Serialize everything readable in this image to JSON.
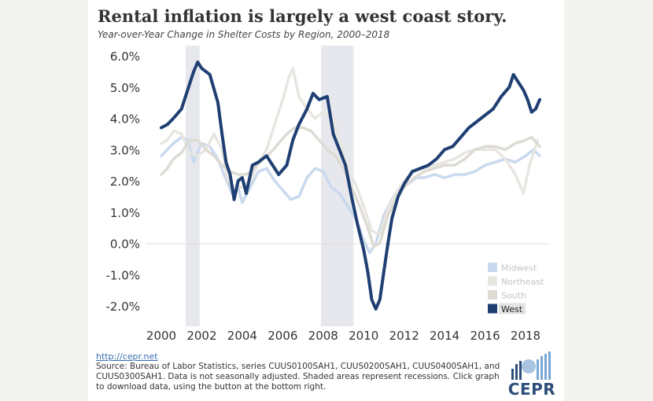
{
  "header": {
    "title": "Rental inflation is largely a west coast story.",
    "subtitle": "Year-over-Year Change in Shelter Costs by Region, 2000–2018"
  },
  "footer": {
    "link": "http://cepr.net",
    "source": "Source: Bureau of Labor Statistics, series CUUS0100SAH1, CUUS0200SAH1, CUUS0400SAH1, and CUUS0300SAH1. Data is not seasonally adjusted. Shaded areas represent recessions. Click graph to download data, using the button at the bottom right.",
    "logo": "CEPR"
  },
  "chart_data": {
    "type": "line",
    "xlim": [
      2000,
      2019.0
    ],
    "ylim": [
      -2.5,
      6.2
    ],
    "x_ticks": [
      2000,
      2002,
      2004,
      2006,
      2008,
      2010,
      2012,
      2014,
      2016,
      2018
    ],
    "y_ticks": [
      -2.0,
      -1.0,
      0.0,
      1.0,
      2.0,
      3.0,
      4.0,
      5.0,
      6.0
    ],
    "y_tick_labels": [
      "-2.0%",
      "-1.0%",
      "0.0%",
      "1.0%",
      "2.0%",
      "3.0%",
      "4.0%",
      "5.0%",
      "6.0%"
    ],
    "recessions": [
      [
        2001.2,
        2001.9
      ],
      [
        2007.9,
        2009.5
      ]
    ],
    "grid": false,
    "legend_position": "bottom-right",
    "series": [
      {
        "name": "Midwest",
        "color": "#c9d9ee",
        "points": [
          [
            2000.0,
            2.8
          ],
          [
            2000.3,
            3.0
          ],
          [
            2000.6,
            3.2
          ],
          [
            2001.0,
            3.4
          ],
          [
            2001.3,
            3.3
          ],
          [
            2001.6,
            2.6
          ],
          [
            2002.0,
            3.2
          ],
          [
            2002.4,
            3.1
          ],
          [
            2002.8,
            2.7
          ],
          [
            2003.1,
            2.2
          ],
          [
            2003.5,
            1.6
          ],
          [
            2003.8,
            1.8
          ],
          [
            2004.0,
            1.3
          ],
          [
            2004.4,
            1.8
          ],
          [
            2004.8,
            2.3
          ],
          [
            2005.2,
            2.4
          ],
          [
            2005.6,
            2.0
          ],
          [
            2006.0,
            1.7
          ],
          [
            2006.4,
            1.4
          ],
          [
            2006.8,
            1.5
          ],
          [
            2007.2,
            2.1
          ],
          [
            2007.6,
            2.4
          ],
          [
            2008.0,
            2.3
          ],
          [
            2008.4,
            1.8
          ],
          [
            2008.8,
            1.6
          ],
          [
            2009.2,
            1.2
          ],
          [
            2009.6,
            0.8
          ],
          [
            2010.0,
            0.1
          ],
          [
            2010.3,
            -0.3
          ],
          [
            2010.6,
            0.0
          ],
          [
            2011.0,
            0.9
          ],
          [
            2011.4,
            1.4
          ],
          [
            2011.8,
            1.8
          ],
          [
            2012.2,
            1.9
          ],
          [
            2012.6,
            2.1
          ],
          [
            2013.0,
            2.1
          ],
          [
            2013.5,
            2.2
          ],
          [
            2014.0,
            2.1
          ],
          [
            2014.5,
            2.2
          ],
          [
            2015.0,
            2.2
          ],
          [
            2015.5,
            2.3
          ],
          [
            2016.0,
            2.5
          ],
          [
            2016.5,
            2.6
          ],
          [
            2017.0,
            2.7
          ],
          [
            2017.5,
            2.6
          ],
          [
            2018.0,
            2.8
          ],
          [
            2018.4,
            3.0
          ],
          [
            2018.7,
            2.8
          ]
        ]
      },
      {
        "name": "Northeast",
        "color": "#e8e6e1",
        "points": [
          [
            2000.0,
            3.2
          ],
          [
            2000.3,
            3.3
          ],
          [
            2000.6,
            3.6
          ],
          [
            2001.0,
            3.5
          ],
          [
            2001.4,
            2.9
          ],
          [
            2001.8,
            2.8
          ],
          [
            2002.2,
            3.0
          ],
          [
            2002.6,
            3.5
          ],
          [
            2003.0,
            3.0
          ],
          [
            2003.3,
            2.0
          ],
          [
            2003.6,
            1.8
          ],
          [
            2004.0,
            1.8
          ],
          [
            2004.4,
            2.0
          ],
          [
            2004.8,
            2.6
          ],
          [
            2005.2,
            3.0
          ],
          [
            2005.6,
            3.8
          ],
          [
            2006.0,
            4.6
          ],
          [
            2006.3,
            5.3
          ],
          [
            2006.5,
            5.6
          ],
          [
            2006.8,
            4.7
          ],
          [
            2007.2,
            4.3
          ],
          [
            2007.6,
            4.0
          ],
          [
            2008.0,
            4.2
          ],
          [
            2008.4,
            4.1
          ],
          [
            2008.8,
            3.3
          ],
          [
            2009.2,
            2.4
          ],
          [
            2009.6,
            1.9
          ],
          [
            2010.0,
            1.2
          ],
          [
            2010.4,
            0.4
          ],
          [
            2010.8,
            0.3
          ],
          [
            2011.2,
            1.1
          ],
          [
            2011.6,
            1.6
          ],
          [
            2012.0,
            2.0
          ],
          [
            2012.5,
            2.3
          ],
          [
            2013.0,
            2.4
          ],
          [
            2013.5,
            2.5
          ],
          [
            2014.0,
            2.6
          ],
          [
            2014.5,
            2.7
          ],
          [
            2015.0,
            2.9
          ],
          [
            2015.5,
            3.0
          ],
          [
            2016.0,
            3.0
          ],
          [
            2016.5,
            3.0
          ],
          [
            2017.0,
            2.7
          ],
          [
            2017.5,
            2.2
          ],
          [
            2017.9,
            1.6
          ],
          [
            2018.2,
            2.5
          ],
          [
            2018.6,
            3.3
          ]
        ]
      },
      {
        "name": "South",
        "color": "#dedbd4",
        "points": [
          [
            2000.0,
            2.2
          ],
          [
            2000.3,
            2.4
          ],
          [
            2000.6,
            2.7
          ],
          [
            2001.0,
            2.9
          ],
          [
            2001.4,
            3.3
          ],
          [
            2001.8,
            3.3
          ],
          [
            2002.2,
            3.0
          ],
          [
            2002.6,
            2.8
          ],
          [
            2003.0,
            2.5
          ],
          [
            2003.4,
            2.3
          ],
          [
            2003.8,
            2.2
          ],
          [
            2004.2,
            2.2
          ],
          [
            2004.6,
            2.4
          ],
          [
            2005.0,
            2.7
          ],
          [
            2005.4,
            2.9
          ],
          [
            2005.8,
            3.2
          ],
          [
            2006.2,
            3.5
          ],
          [
            2006.6,
            3.7
          ],
          [
            2007.0,
            3.7
          ],
          [
            2007.4,
            3.6
          ],
          [
            2007.8,
            3.3
          ],
          [
            2008.2,
            3.0
          ],
          [
            2008.6,
            2.8
          ],
          [
            2009.0,
            2.4
          ],
          [
            2009.4,
            1.8
          ],
          [
            2009.8,
            1.2
          ],
          [
            2010.2,
            0.5
          ],
          [
            2010.5,
            -0.1
          ],
          [
            2010.8,
            0.0
          ],
          [
            2011.2,
            0.9
          ],
          [
            2011.6,
            1.4
          ],
          [
            2012.0,
            1.8
          ],
          [
            2012.5,
            2.1
          ],
          [
            2013.0,
            2.3
          ],
          [
            2013.5,
            2.4
          ],
          [
            2014.0,
            2.5
          ],
          [
            2014.5,
            2.5
          ],
          [
            2015.0,
            2.7
          ],
          [
            2015.5,
            3.0
          ],
          [
            2016.0,
            3.1
          ],
          [
            2016.5,
            3.1
          ],
          [
            2017.0,
            3.0
          ],
          [
            2017.5,
            3.2
          ],
          [
            2018.0,
            3.3
          ],
          [
            2018.3,
            3.4
          ],
          [
            2018.7,
            3.1
          ]
        ]
      },
      {
        "name": "West",
        "color": "#1f3f73",
        "points": [
          [
            2000.0,
            3.7
          ],
          [
            2000.3,
            3.8
          ],
          [
            2000.6,
            4.0
          ],
          [
            2001.0,
            4.3
          ],
          [
            2001.3,
            4.9
          ],
          [
            2001.6,
            5.5
          ],
          [
            2001.8,
            5.8
          ],
          [
            2002.0,
            5.6
          ],
          [
            2002.4,
            5.4
          ],
          [
            2002.8,
            4.5
          ],
          [
            2003.0,
            3.5
          ],
          [
            2003.2,
            2.6
          ],
          [
            2003.4,
            2.2
          ],
          [
            2003.6,
            1.4
          ],
          [
            2003.8,
            2.0
          ],
          [
            2004.0,
            2.1
          ],
          [
            2004.2,
            1.6
          ],
          [
            2004.5,
            2.5
          ],
          [
            2004.8,
            2.6
          ],
          [
            2005.2,
            2.8
          ],
          [
            2005.5,
            2.5
          ],
          [
            2005.8,
            2.2
          ],
          [
            2006.2,
            2.5
          ],
          [
            2006.5,
            3.3
          ],
          [
            2006.8,
            3.8
          ],
          [
            2007.2,
            4.3
          ],
          [
            2007.5,
            4.8
          ],
          [
            2007.8,
            4.6
          ],
          [
            2008.2,
            4.7
          ],
          [
            2008.5,
            3.5
          ],
          [
            2008.8,
            3.0
          ],
          [
            2009.1,
            2.5
          ],
          [
            2009.4,
            1.5
          ],
          [
            2009.7,
            0.6
          ],
          [
            2010.0,
            -0.2
          ],
          [
            2010.2,
            -0.9
          ],
          [
            2010.4,
            -1.8
          ],
          [
            2010.6,
            -2.1
          ],
          [
            2010.8,
            -1.8
          ],
          [
            2011.0,
            -0.9
          ],
          [
            2011.2,
            0.0
          ],
          [
            2011.4,
            0.8
          ],
          [
            2011.7,
            1.5
          ],
          [
            2012.0,
            1.9
          ],
          [
            2012.4,
            2.3
          ],
          [
            2012.8,
            2.4
          ],
          [
            2013.2,
            2.5
          ],
          [
            2013.6,
            2.7
          ],
          [
            2014.0,
            3.0
          ],
          [
            2014.4,
            3.1
          ],
          [
            2014.8,
            3.4
          ],
          [
            2015.2,
            3.7
          ],
          [
            2015.6,
            3.9
          ],
          [
            2016.0,
            4.1
          ],
          [
            2016.4,
            4.3
          ],
          [
            2016.8,
            4.7
          ],
          [
            2017.2,
            5.0
          ],
          [
            2017.4,
            5.4
          ],
          [
            2017.6,
            5.2
          ],
          [
            2017.9,
            4.9
          ],
          [
            2018.1,
            4.6
          ],
          [
            2018.3,
            4.2
          ],
          [
            2018.5,
            4.3
          ],
          [
            2018.7,
            4.6
          ]
        ]
      }
    ]
  }
}
